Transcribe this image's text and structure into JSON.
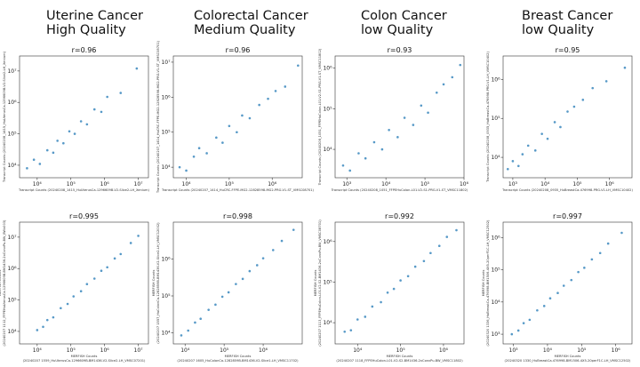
{
  "columns": [
    [
      "Uterine Cancer",
      "High Quality"
    ],
    [
      "Colorectal Cancer",
      "Medium Quality"
    ],
    [
      "Colon Cancer",
      "low Quality"
    ],
    [
      "Breast Cancer",
      "low Quality"
    ]
  ],
  "chart_data": [
    {
      "type": "scatter",
      "title": "r=0.96",
      "xscale": "log",
      "yscale": "log",
      "color": "#1f77b4",
      "xlabel": [
        "Transcript Counts (20240208_1415_HuUterusCa-1296609B-V2-Slice2-LH_Xenium)"
      ],
      "ylabel": [
        "Transcript Counts (20240208_1415_HuUterusCa-1296609B-V2-Slice2-LH_Xenium)"
      ],
      "xlim": [
        3000,
        20000000
      ],
      "ylim": [
        4000,
        30000000
      ],
      "xticks": [
        {
          "value": 10000,
          "label": "10⁴"
        },
        {
          "value": 100000,
          "label": "10⁵"
        },
        {
          "value": 1000000,
          "label": "10⁶"
        },
        {
          "value": 10000000,
          "label": "10⁷"
        }
      ],
      "yticks": [
        {
          "value": 10000,
          "label": "10⁴"
        },
        {
          "value": 100000,
          "label": "10⁵"
        },
        {
          "value": 1000000,
          "label": "10⁶"
        },
        {
          "value": 10000000,
          "label": "10⁷"
        }
      ],
      "x": [
        5000,
        8000,
        12000,
        20000,
        30000,
        40000,
        60000,
        90000,
        130000,
        200000,
        300000,
        500000,
        800000,
        1200000,
        3000000,
        9000000
      ],
      "values": [
        8000,
        15000,
        11000,
        30000,
        25000,
        60000,
        50000,
        120000,
        100000,
        250000,
        200000,
        600000,
        500000,
        1500000,
        2000000,
        12000000
      ]
    },
    {
      "type": "scatter",
      "title": "r=0.96",
      "xscale": "log",
      "yscale": "log",
      "color": "#1f77b4",
      "xlabel": [
        "Transcript Counts (20240207_1414_HuCRC-FFPE-MG2-12828598-MG2-PRG-V1-ST_VMSC08701)"
      ],
      "ylabel": [
        "Transcript Counts (20240207_1414_HuCRC-FFPE-MG2-12828598-MG2-PRG-V1-ST_VMSC08701)"
      ],
      "xlim": [
        5000,
        5000000
      ],
      "ylim": [
        5000,
        15000000
      ],
      "xticks": [
        {
          "value": 10000,
          "label": "10⁴"
        },
        {
          "value": 100000,
          "label": "10⁵"
        },
        {
          "value": 1000000,
          "label": "10⁶"
        }
      ],
      "yticks": [
        {
          "value": 10000,
          "label": "10⁴"
        },
        {
          "value": 100000,
          "label": "10⁵"
        },
        {
          "value": 1000000,
          "label": "10⁶"
        },
        {
          "value": 10000000,
          "label": "10⁷"
        }
      ],
      "x": [
        7000,
        10000,
        15000,
        20000,
        30000,
        50000,
        70000,
        100000,
        150000,
        200000,
        300000,
        500000,
        800000,
        1200000,
        2000000,
        4000000
      ],
      "values": [
        10000,
        8000,
        20000,
        35000,
        25000,
        70000,
        50000,
        150000,
        100000,
        300000,
        250000,
        600000,
        900000,
        1500000,
        2000000,
        8000000
      ]
    },
    {
      "type": "scatter",
      "title": "r=0.93",
      "xscale": "log",
      "yscale": "log",
      "color": "#1f77b4",
      "xlabel": [
        "Transcript Counts (20240208_1051_FFPEHuColon-L01-V2-S1-PRG-V1-ST_VMSC11802)"
      ],
      "ylabel": [
        "Transcript Counts (20240208_1051_FFPEHuColon-L01-V2-S1-PRG-V1-ST_VMSC11802)"
      ],
      "xlim": [
        500,
        1000000
      ],
      "ylim": [
        2000,
        2000000
      ],
      "xticks": [
        {
          "value": 1000,
          "label": "10³"
        },
        {
          "value": 10000,
          "label": "10⁴"
        },
        {
          "value": 100000,
          "label": "10⁵"
        },
        {
          "value": 1000000,
          "label": "10⁶"
        }
      ],
      "yticks": [
        {
          "value": 10000,
          "label": "10⁴"
        },
        {
          "value": 100000,
          "label": "10⁵"
        },
        {
          "value": 1000000,
          "label": "10⁶"
        }
      ],
      "x": [
        800,
        1200,
        2000,
        3000,
        5000,
        8000,
        12000,
        20000,
        30000,
        50000,
        80000,
        120000,
        200000,
        300000,
        500000,
        800000
      ],
      "values": [
        4000,
        3000,
        8000,
        6000,
        15000,
        10000,
        30000,
        20000,
        60000,
        40000,
        120000,
        80000,
        250000,
        400000,
        600000,
        1200000
      ]
    },
    {
      "type": "scatter",
      "title": "r=0.95",
      "xscale": "log",
      "yscale": "log",
      "color": "#1f77b4",
      "xlabel": [
        "Transcript Counts (20240208_0935_HuBreastCa-476998-PRG-V1-LH_VMSC10402)"
      ],
      "ylabel": [
        "Transcript Counts (20240208_0935_HuBreastCa-476998-PRG-V1-LH_VMSC10402)"
      ],
      "xlim": [
        500,
        5000000
      ],
      "ylim": [
        3000,
        4000000
      ],
      "xticks": [
        {
          "value": 1000,
          "label": "10³"
        },
        {
          "value": 10000,
          "label": "10⁴"
        },
        {
          "value": 100000,
          "label": "10⁵"
        },
        {
          "value": 1000000,
          "label": "10⁶"
        }
      ],
      "yticks": [
        {
          "value": 10000,
          "label": "10⁴"
        },
        {
          "value": 100000,
          "label": "10⁵"
        },
        {
          "value": 1000000,
          "label": "10⁶"
        }
      ],
      "x": [
        700,
        1000,
        1500,
        2000,
        3000,
        5000,
        8000,
        12000,
        20000,
        30000,
        50000,
        80000,
        150000,
        300000,
        800000,
        3000000
      ],
      "values": [
        5000,
        8000,
        6000,
        12000,
        20000,
        15000,
        40000,
        30000,
        80000,
        60000,
        150000,
        200000,
        300000,
        600000,
        900000,
        2000000
      ]
    },
    {
      "type": "scatter",
      "title": "r=0.995",
      "xscale": "log",
      "yscale": "log",
      "color": "#1f77b4",
      "xlabel": [
        "MERFISH Counts",
        "(20240207 1559_HuUterusCa-1296609B-BM1436-V2-Slice2-LH_VMSC07201)"
      ],
      "ylabel": [
        "MERFISH Counts",
        "(20240207 1112_FFPEHuUterusCa-1296609B-BM1436-2xConvPu-BW_BWk003)"
      ],
      "xlim": [
        3000,
        20000000
      ],
      "ylim": [
        4000,
        30000000
      ],
      "xticks": [
        {
          "value": 10000,
          "label": "10⁴"
        },
        {
          "value": 100000,
          "label": "10⁵"
        },
        {
          "value": 1000000,
          "label": "10⁶"
        },
        {
          "value": 10000000,
          "label": "10⁷"
        }
      ],
      "yticks": [
        {
          "value": 10000,
          "label": "10⁴"
        },
        {
          "value": 100000,
          "label": "10⁵"
        },
        {
          "value": 1000000,
          "label": "10⁶"
        },
        {
          "value": 10000000,
          "label": "10⁷"
        }
      ],
      "x": [
        10000,
        15000,
        20000,
        30000,
        50000,
        80000,
        120000,
        200000,
        300000,
        500000,
        800000,
        1200000,
        2000000,
        3000000,
        6000000,
        10000000
      ],
      "values": [
        11000,
        14000,
        23000,
        28000,
        55000,
        75000,
        130000,
        190000,
        320000,
        480000,
        850000,
        1100000,
        2100000,
        2900000,
        6500000,
        11000000
      ]
    },
    {
      "type": "scatter",
      "title": "r=0.998",
      "xscale": "log",
      "yscale": "log",
      "color": "#1f77b4",
      "xlabel": [
        "MERFISH Counts",
        "(20240207 1605_HuColonCa-1282859B-BM1436-V2-Slice1-LH_VMSC11702)"
      ],
      "ylabel": [
        "MERFISH Counts",
        "(20240207 1557_HuColonCa-1282859B-BM1436-V2-Slice2-LH_VMSC12002)"
      ],
      "xlim": [
        5000,
        10000000
      ],
      "ylim": [
        5000,
        10000000
      ],
      "xticks": [
        {
          "value": 10000,
          "label": "10⁴"
        },
        {
          "value": 100000,
          "label": "10⁵"
        },
        {
          "value": 1000000,
          "label": "10⁶"
        }
      ],
      "yticks": [
        {
          "value": 10000,
          "label": "10⁴"
        },
        {
          "value": 100000,
          "label": "10⁵"
        },
        {
          "value": 1000000,
          "label": "10⁶"
        }
      ],
      "x": [
        8000,
        12000,
        18000,
        25000,
        40000,
        60000,
        90000,
        130000,
        200000,
        300000,
        450000,
        700000,
        1000000,
        1800000,
        3000000,
        6000000
      ],
      "values": [
        8500,
        11500,
        19000,
        24000,
        42000,
        58000,
        95000,
        125000,
        210000,
        290000,
        470000,
        680000,
        1050000,
        1750000,
        3100000,
        6200000
      ]
    },
    {
      "type": "scatter",
      "title": "r=0.992",
      "xscale": "log",
      "yscale": "log",
      "color": "#1f77b4",
      "xlabel": [
        "MERFISH Counts",
        "(20240207 1118_FFPEHuColon-L01-V2-S2-BM1436-2xConvPu-BW_VMSC11802)"
      ],
      "ylabel": [
        "MERFISH Counts",
        "(20240207 1113_FFPEHuColon-L01-V2-S2-BM1436-2xConvPu-BW_VMSC08701)"
      ],
      "xlim": [
        3000,
        3000000
      ],
      "ylim": [
        3000,
        3000000
      ],
      "xticks": [
        {
          "value": 10000,
          "label": "10⁴"
        },
        {
          "value": 100000,
          "label": "10⁵"
        },
        {
          "value": 1000000,
          "label": "10⁶"
        }
      ],
      "yticks": [
        {
          "value": 10000,
          "label": "10⁴"
        },
        {
          "value": 100000,
          "label": "10⁵"
        },
        {
          "value": 1000000,
          "label": "10⁶"
        }
      ],
      "x": [
        5000,
        7000,
        10000,
        15000,
        22000,
        35000,
        50000,
        70000,
        100000,
        150000,
        220000,
        350000,
        500000,
        800000,
        1200000,
        2000000
      ],
      "values": [
        6000,
        6500,
        12000,
        14000,
        25000,
        32000,
        55000,
        68000,
        110000,
        140000,
        240000,
        330000,
        520000,
        780000,
        1300000,
        1900000
      ]
    },
    {
      "type": "scatter",
      "title": "r=0.997",
      "xscale": "log",
      "yscale": "log",
      "color": "#1f77b4",
      "xlabel": [
        "MERFISH Counts",
        "(20240320 1330_HuBreastCa-476998-BM1506-4X5-20perF1C-LH_VMSC12502)"
      ],
      "ylabel": [
        "MERFISH Counts",
        "(20240320 1336_HuBreastCa-476998-BM1506-4X5-20perF1C-LH_VMSC12502)"
      ],
      "xlim": [
        500,
        3000000
      ],
      "ylim": [
        500,
        3000000
      ],
      "xticks": [
        {
          "value": 1000,
          "label": "10³"
        },
        {
          "value": 10000,
          "label": "10⁴"
        },
        {
          "value": 100000,
          "label": "10⁵"
        },
        {
          "value": 1000000,
          "label": "10⁶"
        }
      ],
      "yticks": [
        {
          "value": 1000,
          "label": "10³"
        },
        {
          "value": 10000,
          "label": "10⁴"
        },
        {
          "value": 100000,
          "label": "10⁵"
        },
        {
          "value": 1000000,
          "label": "10⁶"
        }
      ],
      "x": [
        900,
        1400,
        2000,
        3000,
        5000,
        8000,
        12000,
        20000,
        30000,
        50000,
        80000,
        120000,
        200000,
        350000,
        600000,
        1500000
      ],
      "values": [
        1000,
        1300,
        2200,
        2800,
        5500,
        7500,
        13000,
        19000,
        32000,
        48000,
        85000,
        115000,
        210000,
        330000,
        650000,
        1400000
      ]
    }
  ]
}
